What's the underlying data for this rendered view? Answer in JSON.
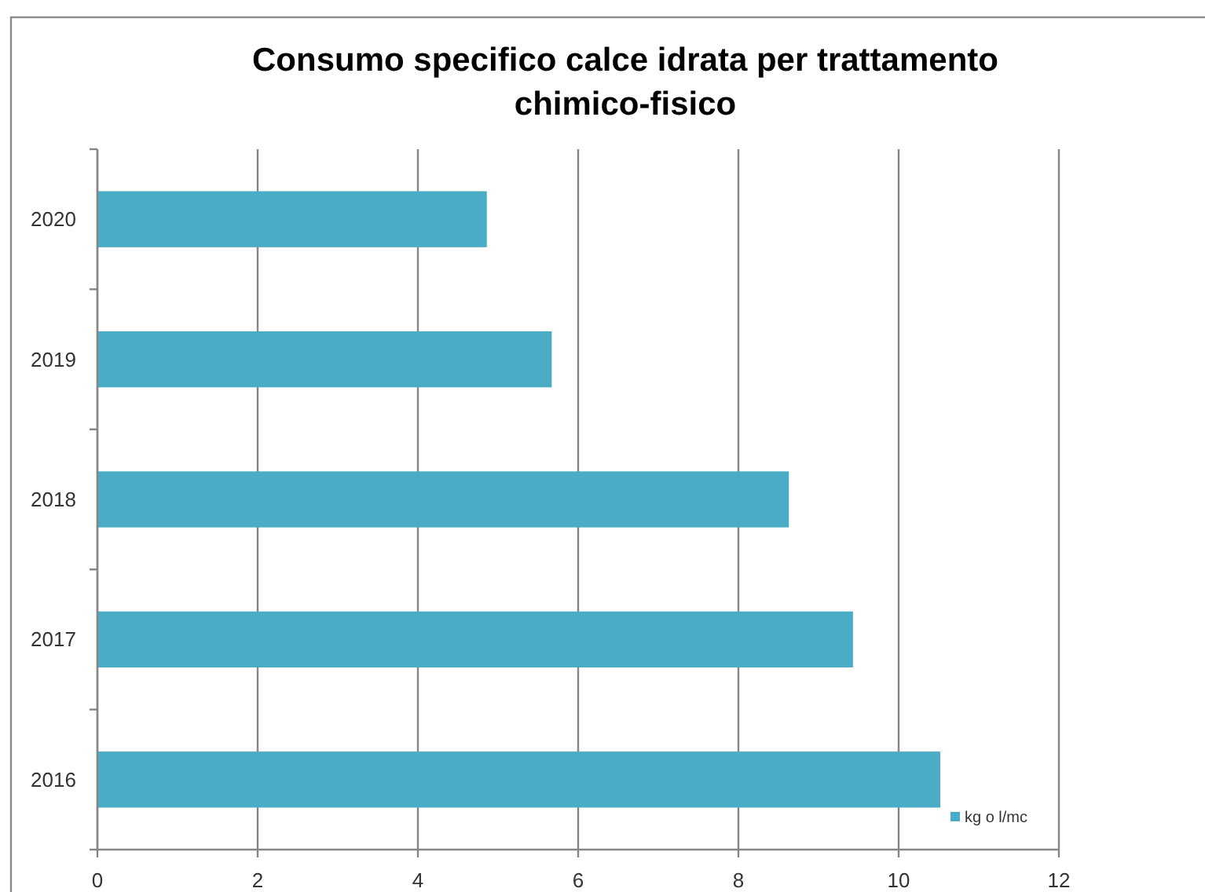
{
  "chart_data": {
    "type": "bar",
    "orientation": "horizontal",
    "title": "Consumo specifico calce idrata per trattamento chimico-fisico",
    "categories": [
      "2020",
      "2019",
      "2018",
      "2017",
      "2016"
    ],
    "series": [
      {
        "name": "kg o l/mc",
        "color": "#4bacc6",
        "values": [
          4.86,
          5.67,
          8.63,
          9.43,
          10.52
        ]
      }
    ],
    "xlim": [
      0,
      12
    ],
    "xticks": [
      0,
      2,
      4,
      6,
      8,
      10,
      12
    ],
    "grid": "x",
    "legend": "bottom right"
  }
}
